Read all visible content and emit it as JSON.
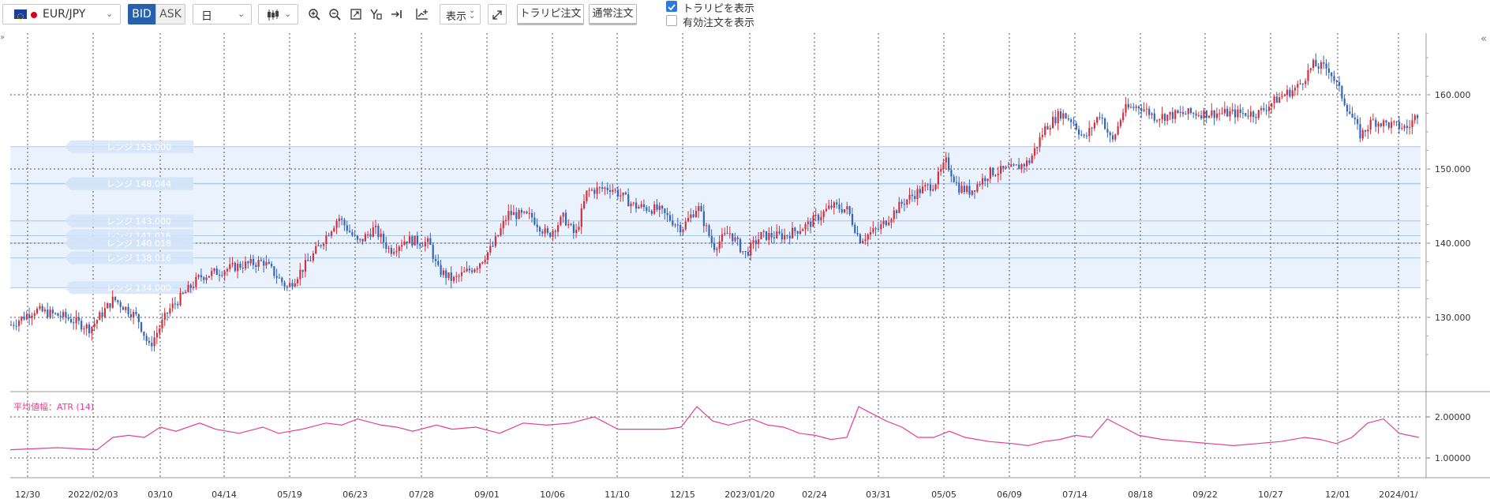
{
  "toolbar": {
    "symbol": "EUR/JPY",
    "bid_label": "BID",
    "ask_label": "ASK",
    "timeframe": "日",
    "display_label": "表示",
    "tp_order_button": "トラリピ注文",
    "normal_order_button": "通常注文",
    "show_trap_label": "トラリピを表示",
    "show_trap_checked": true,
    "show_active_label": "有効注文を表示",
    "show_active_checked": false
  },
  "icons": [
    "flag-eu-icon",
    "candlestick-icon",
    "zoom-in-icon",
    "zoom-out-icon",
    "fit-icon",
    "crosshair-icon",
    "scroll-end-icon",
    "indicator-icon",
    "fullscreen-icon",
    "collapse-icon"
  ],
  "colors": {
    "up": "#d1303f",
    "down": "#3565b8",
    "atr": "#e4408f",
    "band": "#e9f2fd",
    "bid_active": "#2760ad"
  },
  "chart_data": {
    "type": "candlestick",
    "price_ticks": [
      "160.000",
      "150.000",
      "140.000",
      "130.000"
    ],
    "atr_label": "平均値幅：ATR (14)",
    "atr_ticks": [
      "2.00000",
      "1.00000"
    ],
    "x_ticks": [
      "12/30",
      "2022/02/03",
      "03/10",
      "04/14",
      "05/19",
      "06/23",
      "07/28",
      "09/01",
      "10/06",
      "11/10",
      "12/15",
      "2023/01/20",
      "02/24",
      "03/31",
      "05/05",
      "06/09",
      "07/14",
      "08/18",
      "09/22",
      "10/27",
      "12/01",
      "2024/01/"
    ],
    "range_labels": [
      {
        "text": "レンジ 153.000",
        "price": 153.0
      },
      {
        "text": "レンジ 148.000",
        "price": 148.0
      },
      {
        "text": "レンジ 148.044",
        "price": 148.044
      },
      {
        "text": "レンジ 143.000",
        "price": 143.0
      },
      {
        "text": "レンジ 141.016",
        "price": 141.016
      },
      {
        "text": "レンジ 140.000",
        "price": 140.0
      },
      {
        "text": "レンジ 140.018",
        "price": 140.018
      },
      {
        "text": "レンジ 138.016",
        "price": 138.016
      },
      {
        "text": "レンジ 134.000",
        "price": 134.0
      }
    ],
    "price_path": [
      [
        0,
        129.0
      ],
      [
        30,
        131.0
      ],
      [
        70,
        130.0
      ],
      [
        100,
        128.5
      ],
      [
        130,
        132.5
      ],
      [
        160,
        130.0
      ],
      [
        175,
        126.0
      ],
      [
        200,
        131.0
      ],
      [
        240,
        135.5
      ],
      [
        290,
        137.0
      ],
      [
        320,
        137.5
      ],
      [
        350,
        134.0
      ],
      [
        380,
        138.0
      ],
      [
        415,
        143.5
      ],
      [
        440,
        140.0
      ],
      [
        460,
        142.0
      ],
      [
        480,
        139.0
      ],
      [
        500,
        140.5
      ],
      [
        530,
        140.0
      ],
      [
        540,
        136.5
      ],
      [
        560,
        135.0
      ],
      [
        590,
        137.0
      ],
      [
        610,
        139.5
      ],
      [
        630,
        144.0
      ],
      [
        660,
        143.5
      ],
      [
        680,
        141.0
      ],
      [
        700,
        143.5
      ],
      [
        715,
        141.0
      ],
      [
        730,
        147.0
      ],
      [
        760,
        147.5
      ],
      [
        790,
        145.0
      ],
      [
        820,
        144.5
      ],
      [
        850,
        142.0
      ],
      [
        870,
        145.0
      ],
      [
        890,
        139.5
      ],
      [
        910,
        141.5
      ],
      [
        930,
        138.5
      ],
      [
        950,
        141.0
      ],
      [
        980,
        141.0
      ],
      [
        1010,
        142.5
      ],
      [
        1040,
        145.0
      ],
      [
        1060,
        144.5
      ],
      [
        1075,
        140.5
      ],
      [
        1100,
        142.0
      ],
      [
        1130,
        145.5
      ],
      [
        1150,
        147.0
      ],
      [
        1170,
        148.0
      ],
      [
        1185,
        151.0
      ],
      [
        1200,
        147.5
      ],
      [
        1215,
        147.0
      ],
      [
        1240,
        149.5
      ],
      [
        1270,
        150.0
      ],
      [
        1290,
        151.0
      ],
      [
        1310,
        155.5
      ],
      [
        1330,
        157.5
      ],
      [
        1345,
        156.5
      ],
      [
        1360,
        154.0
      ],
      [
        1380,
        157.5
      ],
      [
        1395,
        153.5
      ],
      [
        1410,
        158.0
      ],
      [
        1430,
        158.5
      ],
      [
        1450,
        157.0
      ],
      [
        1490,
        157.5
      ],
      [
        1520,
        157.5
      ],
      [
        1550,
        157.5
      ],
      [
        1580,
        157.5
      ],
      [
        1605,
        159.5
      ],
      [
        1630,
        161.0
      ],
      [
        1650,
        164.0
      ],
      [
        1670,
        163.5
      ],
      [
        1690,
        159.0
      ],
      [
        1710,
        154.5
      ],
      [
        1725,
        156.5
      ],
      [
        1745,
        156.0
      ],
      [
        1770,
        155.5
      ],
      [
        1785,
        158.0
      ]
    ],
    "atr_path": [
      [
        0,
        1.2
      ],
      [
        60,
        1.25
      ],
      [
        110,
        1.2
      ],
      [
        130,
        1.5
      ],
      [
        150,
        1.55
      ],
      [
        170,
        1.5
      ],
      [
        190,
        1.75
      ],
      [
        210,
        1.65
      ],
      [
        240,
        1.85
      ],
      [
        260,
        1.7
      ],
      [
        290,
        1.6
      ],
      [
        320,
        1.75
      ],
      [
        340,
        1.6
      ],
      [
        370,
        1.7
      ],
      [
        400,
        1.85
      ],
      [
        420,
        1.8
      ],
      [
        440,
        1.95
      ],
      [
        470,
        1.8
      ],
      [
        490,
        1.75
      ],
      [
        510,
        1.65
      ],
      [
        540,
        1.8
      ],
      [
        560,
        1.7
      ],
      [
        590,
        1.75
      ],
      [
        620,
        1.6
      ],
      [
        650,
        1.85
      ],
      [
        680,
        1.8
      ],
      [
        710,
        1.85
      ],
      [
        740,
        2.0
      ],
      [
        770,
        1.7
      ],
      [
        800,
        1.7
      ],
      [
        830,
        1.7
      ],
      [
        850,
        1.75
      ],
      [
        870,
        2.25
      ],
      [
        890,
        1.9
      ],
      [
        910,
        1.8
      ],
      [
        940,
        1.95
      ],
      [
        960,
        1.8
      ],
      [
        980,
        1.75
      ],
      [
        1000,
        1.6
      ],
      [
        1020,
        1.55
      ],
      [
        1040,
        1.45
      ],
      [
        1060,
        1.5
      ],
      [
        1075,
        2.25
      ],
      [
        1090,
        2.1
      ],
      [
        1110,
        1.9
      ],
      [
        1130,
        1.75
      ],
      [
        1150,
        1.5
      ],
      [
        1170,
        1.5
      ],
      [
        1190,
        1.65
      ],
      [
        1210,
        1.5
      ],
      [
        1240,
        1.4
      ],
      [
        1270,
        1.35
      ],
      [
        1290,
        1.3
      ],
      [
        1310,
        1.4
      ],
      [
        1330,
        1.45
      ],
      [
        1350,
        1.55
      ],
      [
        1370,
        1.5
      ],
      [
        1390,
        1.95
      ],
      [
        1410,
        1.75
      ],
      [
        1430,
        1.55
      ],
      [
        1460,
        1.45
      ],
      [
        1490,
        1.4
      ],
      [
        1520,
        1.35
      ],
      [
        1550,
        1.3
      ],
      [
        1580,
        1.35
      ],
      [
        1610,
        1.4
      ],
      [
        1640,
        1.5
      ],
      [
        1660,
        1.45
      ],
      [
        1680,
        1.35
      ],
      [
        1700,
        1.5
      ],
      [
        1720,
        1.85
      ],
      [
        1740,
        1.95
      ],
      [
        1760,
        1.6
      ],
      [
        1785,
        1.5
      ]
    ]
  }
}
